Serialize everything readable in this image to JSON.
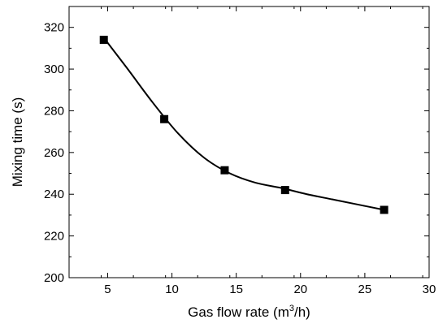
{
  "chart_data": {
    "type": "scatter",
    "title": "",
    "xlabel": "Gas flow rate (m",
    "xlabel_sup": "3",
    "xlabel_suffix": "/h)",
    "ylabel": "Mixing time (s)",
    "xlim": [
      2,
      30
    ],
    "ylim": [
      200,
      330
    ],
    "xticks": [
      5,
      10,
      15,
      20,
      25,
      30
    ],
    "yticks": [
      200,
      220,
      240,
      260,
      280,
      300,
      320
    ],
    "grid": false,
    "legend": "none",
    "series": [
      {
        "marker": "square",
        "color": "#000000",
        "x": [
          4.7,
          9.4,
          14.1,
          18.8,
          26.5
        ],
        "y": [
          314,
          276,
          251.5,
          242,
          232.5
        ]
      }
    ],
    "fit_curve": {
      "style": "smooth",
      "color": "#000000",
      "x": [
        4.7,
        6.5,
        8.5,
        10.5,
        12.5,
        14.5,
        16.5,
        18.5,
        20.5,
        22.5,
        24.5,
        26.5
      ],
      "y": [
        315,
        300.5,
        284,
        269,
        257.5,
        250,
        245.5,
        243,
        240,
        237.5,
        235,
        232.5
      ]
    }
  }
}
